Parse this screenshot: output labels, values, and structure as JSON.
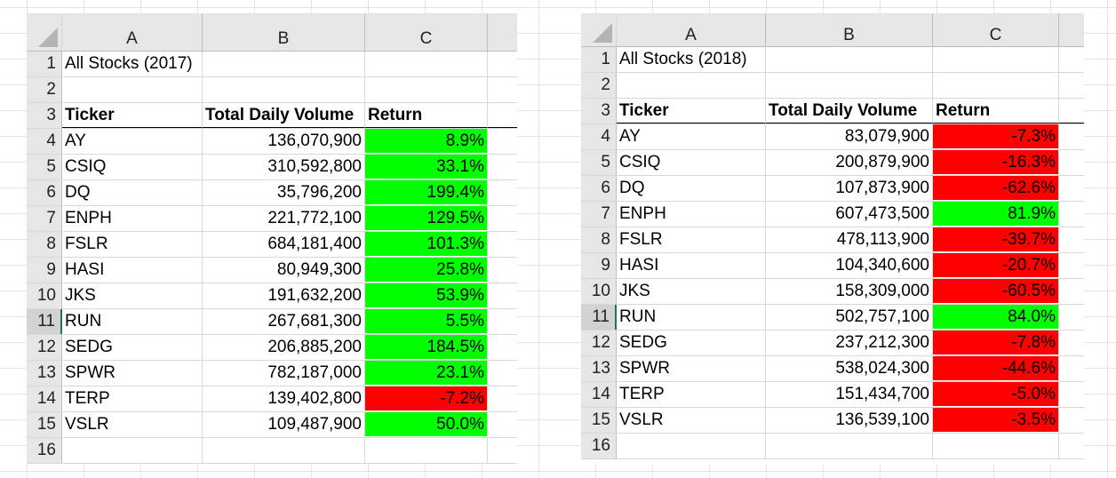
{
  "columns": [
    "A",
    "B",
    "C"
  ],
  "sheets": [
    {
      "title": "All Stocks (2017)",
      "headers": {
        "ticker": "Ticker",
        "volume": "Total Daily Volume",
        "return": "Return"
      },
      "rows": [
        {
          "ticker": "AY",
          "volume": "136,070,900",
          "return": "8.9%",
          "positive": true
        },
        {
          "ticker": "CSIQ",
          "volume": "310,592,800",
          "return": "33.1%",
          "positive": true
        },
        {
          "ticker": "DQ",
          "volume": "35,796,200",
          "return": "199.4%",
          "positive": true
        },
        {
          "ticker": "ENPH",
          "volume": "221,772,100",
          "return": "129.5%",
          "positive": true
        },
        {
          "ticker": "FSLR",
          "volume": "684,181,400",
          "return": "101.3%",
          "positive": true
        },
        {
          "ticker": "HASI",
          "volume": "80,949,300",
          "return": "25.8%",
          "positive": true
        },
        {
          "ticker": "JKS",
          "volume": "191,632,200",
          "return": "53.9%",
          "positive": true
        },
        {
          "ticker": "RUN",
          "volume": "267,681,300",
          "return": "5.5%",
          "positive": true
        },
        {
          "ticker": "SEDG",
          "volume": "206,885,200",
          "return": "184.5%",
          "positive": true
        },
        {
          "ticker": "SPWR",
          "volume": "782,187,000",
          "return": "23.1%",
          "positive": true
        },
        {
          "ticker": "TERP",
          "volume": "139,402,800",
          "return": "-7.2%",
          "positive": false
        },
        {
          "ticker": "VSLR",
          "volume": "109,487,900",
          "return": "50.0%",
          "positive": true
        }
      ]
    },
    {
      "title": "All Stocks (2018)",
      "headers": {
        "ticker": "Ticker",
        "volume": "Total Daily Volume",
        "return": "Return"
      },
      "rows": [
        {
          "ticker": "AY",
          "volume": "83,079,900",
          "return": "-7.3%",
          "positive": false
        },
        {
          "ticker": "CSIQ",
          "volume": "200,879,900",
          "return": "-16.3%",
          "positive": false
        },
        {
          "ticker": "DQ",
          "volume": "107,873,900",
          "return": "-62.6%",
          "positive": false
        },
        {
          "ticker": "ENPH",
          "volume": "607,473,500",
          "return": "81.9%",
          "positive": true
        },
        {
          "ticker": "FSLR",
          "volume": "478,113,900",
          "return": "-39.7%",
          "positive": false
        },
        {
          "ticker": "HASI",
          "volume": "104,340,600",
          "return": "-20.7%",
          "positive": false
        },
        {
          "ticker": "JKS",
          "volume": "158,309,000",
          "return": "-60.5%",
          "positive": false
        },
        {
          "ticker": "RUN",
          "volume": "502,757,100",
          "return": "84.0%",
          "positive": true
        },
        {
          "ticker": "SEDG",
          "volume": "237,212,300",
          "return": "-7.8%",
          "positive": false
        },
        {
          "ticker": "SPWR",
          "volume": "538,024,300",
          "return": "-44.6%",
          "positive": false
        },
        {
          "ticker": "TERP",
          "volume": "151,434,700",
          "return": "-5.0%",
          "positive": false
        },
        {
          "ticker": "VSLR",
          "volume": "136,539,100",
          "return": "-3.5%",
          "positive": false
        }
      ]
    }
  ],
  "row_numbers": [
    "1",
    "2",
    "3",
    "4",
    "5",
    "6",
    "7",
    "8",
    "9",
    "10",
    "11",
    "12",
    "13",
    "14",
    "15",
    "16"
  ],
  "selected_row": "11",
  "colors": {
    "positive": "#00ff00",
    "negative": "#ff0000",
    "header_bg": "#e6e6e6",
    "selection": "#217346"
  }
}
